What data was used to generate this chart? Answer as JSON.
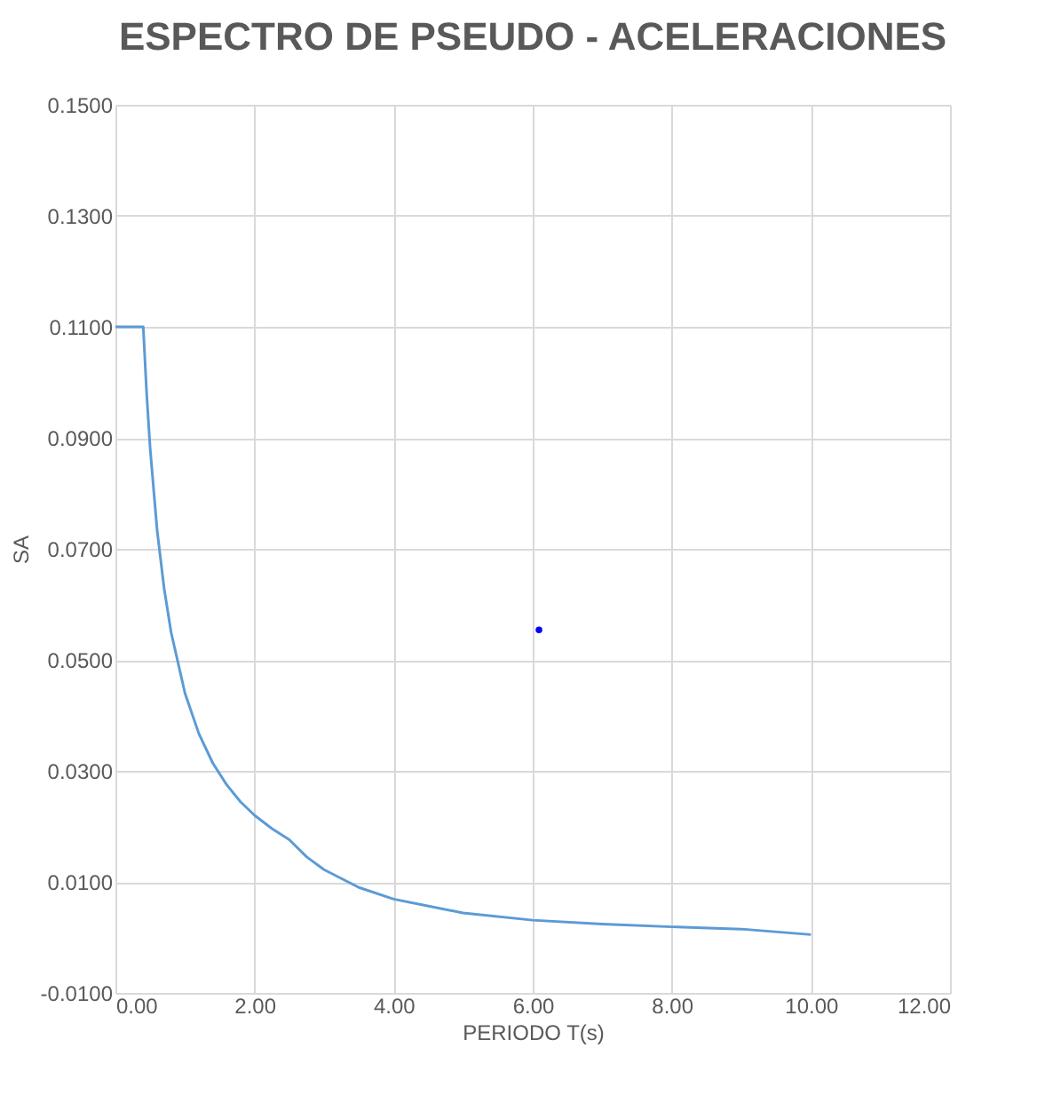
{
  "chart_data": {
    "type": "line",
    "title": "ESPECTRO DE PSEUDO - ACELERACIONES",
    "xlabel": "PERIODO T(s)",
    "ylabel": "SA",
    "xlim": [
      0,
      12
    ],
    "xticks": [
      {
        "value": 0,
        "label": "0.00"
      },
      {
        "value": 2,
        "label": "2.00"
      },
      {
        "value": 4,
        "label": "4.00"
      },
      {
        "value": 6,
        "label": "6.00"
      },
      {
        "value": 8,
        "label": "8.00"
      },
      {
        "value": 10,
        "label": "10.00"
      },
      {
        "value": 12,
        "label": "12.00"
      }
    ],
    "ylim": [
      -0.01,
      0.15
    ],
    "yticks": [
      {
        "value": -0.01,
        "label": "-0.0100"
      },
      {
        "value": 0.01,
        "label": "0.0100"
      },
      {
        "value": 0.03,
        "label": "0.0300"
      },
      {
        "value": 0.05,
        "label": "0.0500"
      },
      {
        "value": 0.07,
        "label": "0.0700"
      },
      {
        "value": 0.09,
        "label": "0.0900"
      },
      {
        "value": 0.11,
        "label": "0.1100"
      },
      {
        "value": 0.13,
        "label": "0.1300"
      },
      {
        "value": 0.15,
        "label": "0.1500"
      }
    ],
    "grid": true,
    "legend": false,
    "marker": "none",
    "line_style": "solid",
    "series": [
      {
        "color": "#5b9bd5",
        "x": [
          0,
          0.4,
          0.45,
          0.5,
          0.6,
          0.7,
          0.8,
          1.0,
          1.2,
          1.4,
          1.6,
          1.8,
          2.0,
          2.25,
          2.5,
          2.75,
          3.0,
          3.5,
          4,
          5,
          6,
          7,
          8,
          9,
          10
        ],
        "values": [
          0.11,
          0.11,
          0.0978,
          0.088,
          0.0733,
          0.0629,
          0.055,
          0.044,
          0.0367,
          0.0314,
          0.0275,
          0.0244,
          0.022,
          0.0196,
          0.0176,
          0.0145,
          0.0122,
          0.009,
          0.0069,
          0.0044,
          0.0031,
          0.0024,
          0.0019,
          0.0015,
          0.0005
        ]
      },
      {
        "type": "scatter",
        "color": "#0000ff",
        "x": [
          6.09
        ],
        "values": [
          0.0554
        ]
      }
    ]
  }
}
